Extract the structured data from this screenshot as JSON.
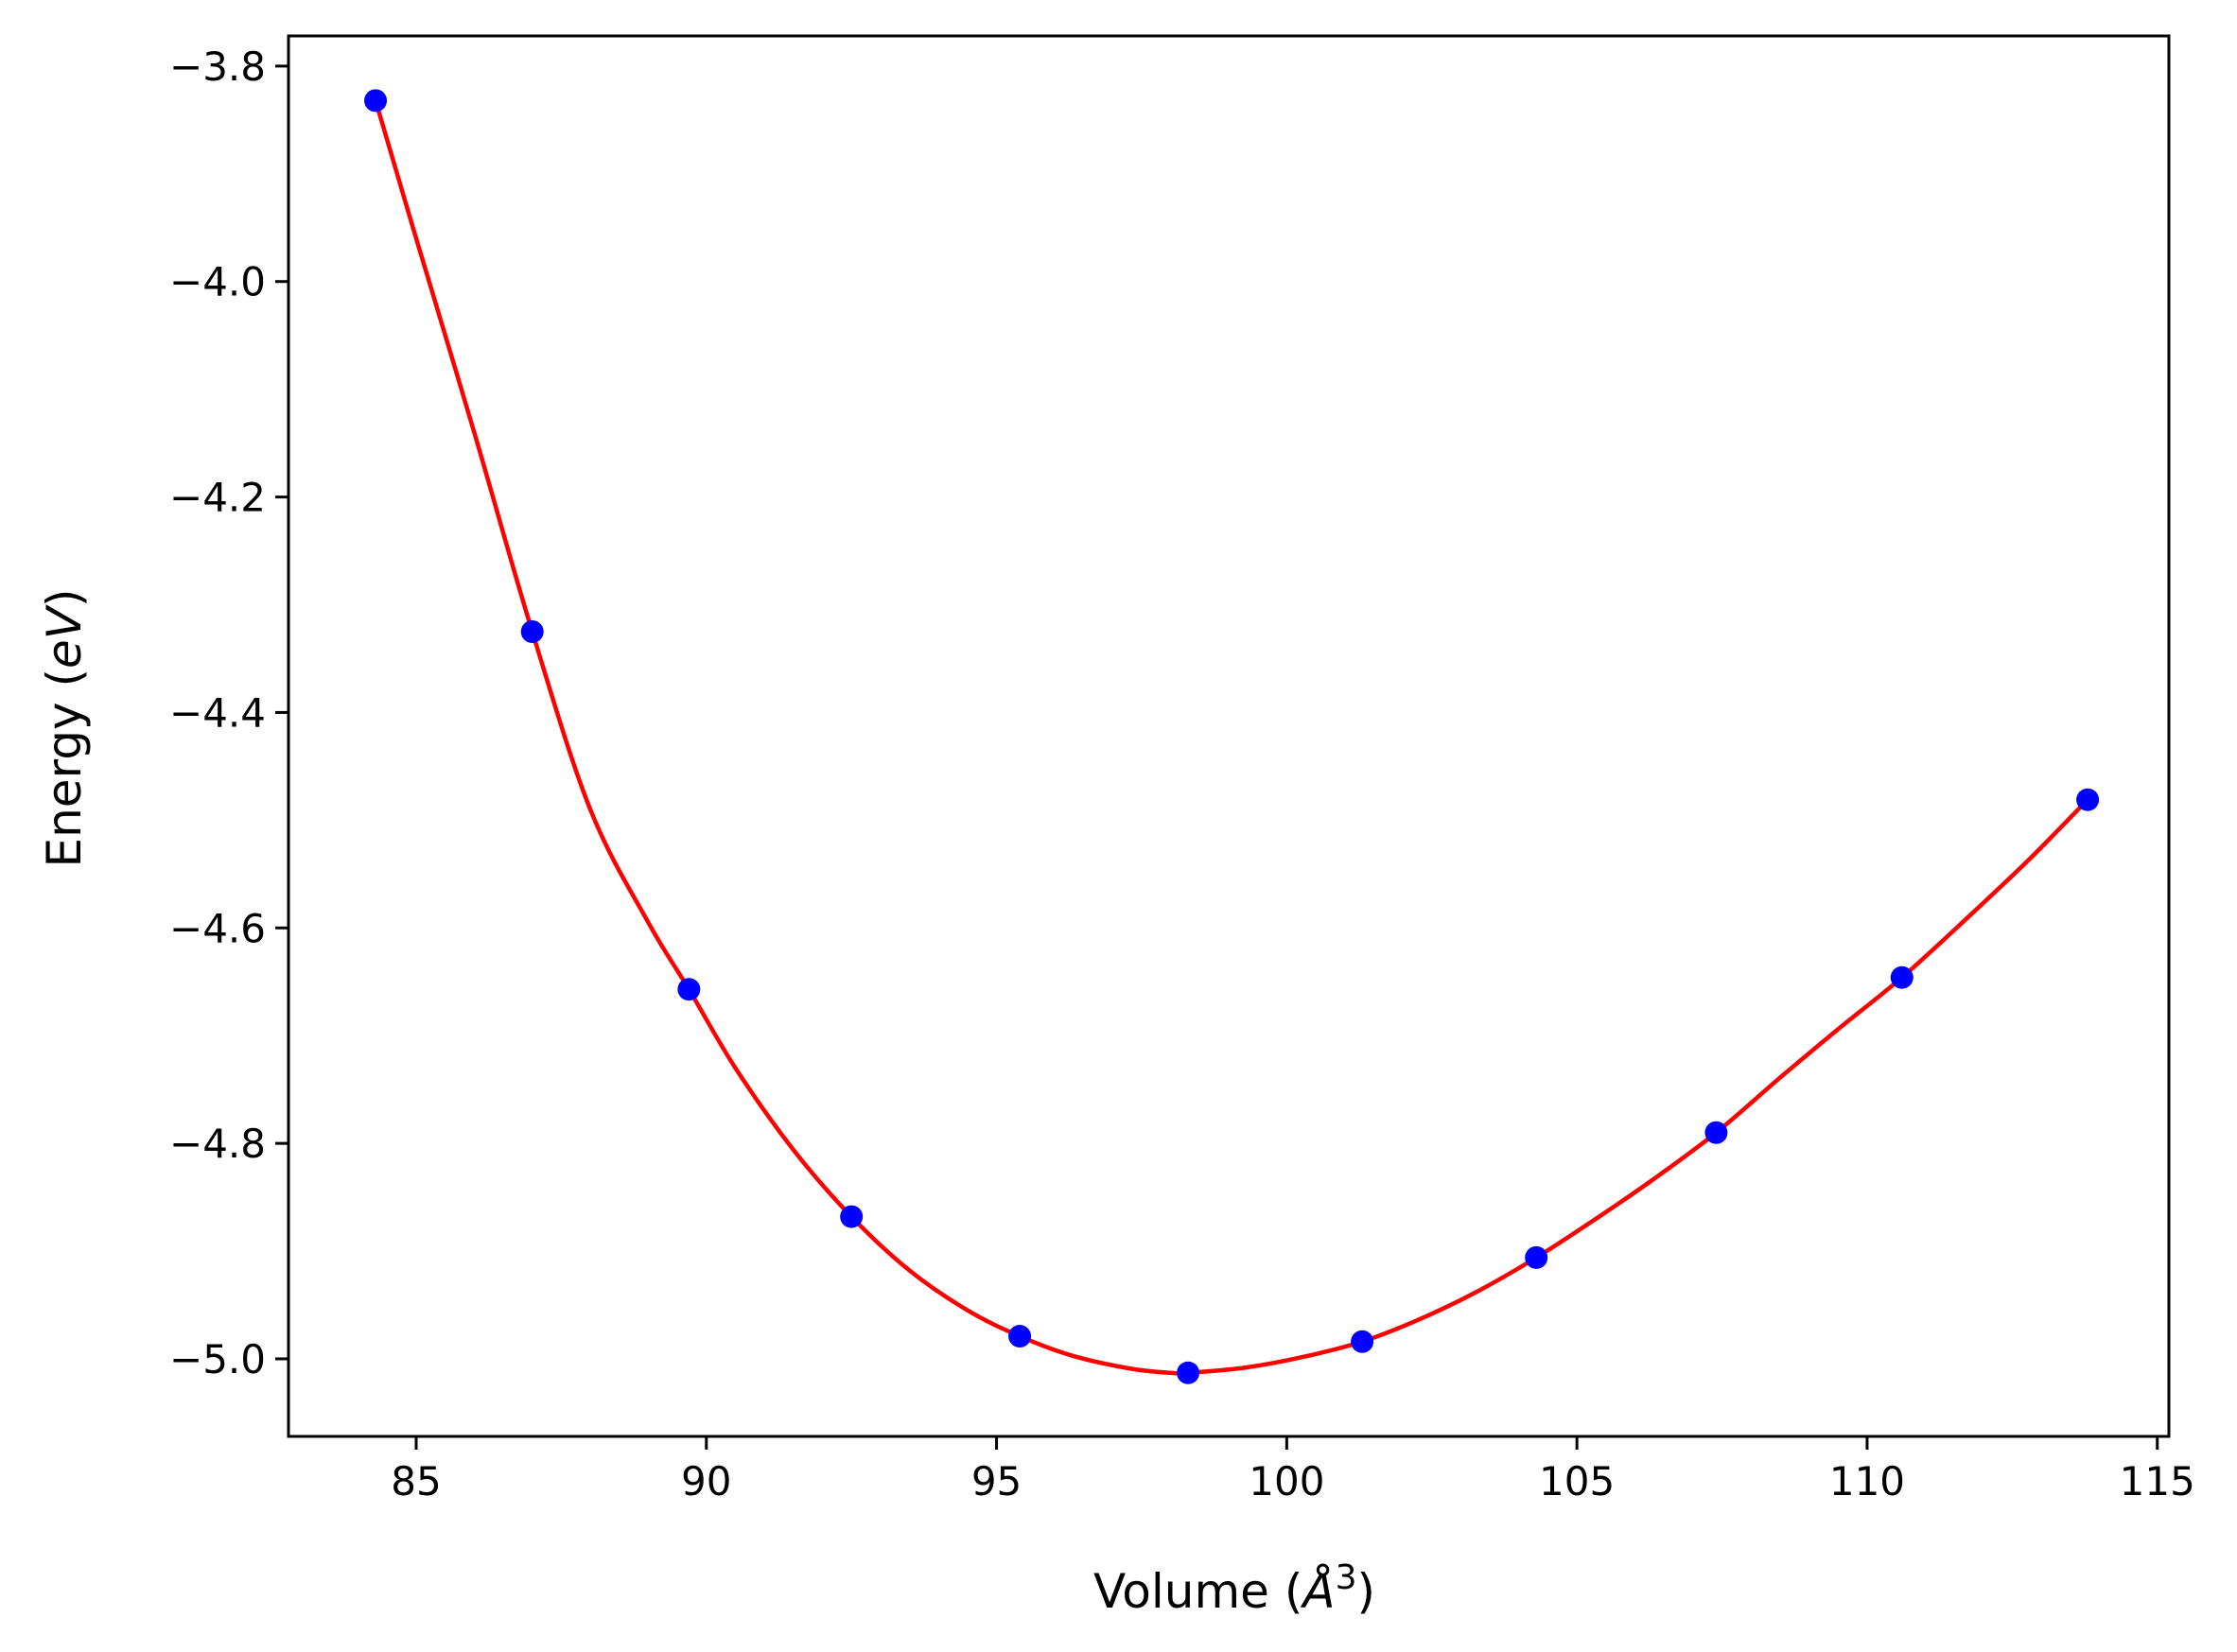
{
  "chart_data": {
    "type": "line",
    "xlabel_prefix": "Volume (",
    "xlabel_unit": "Å",
    "xlabel_exp": "3",
    "xlabel_suffix": ")",
    "ylabel_prefix": "Energy (",
    "ylabel_unit": "eV",
    "ylabel_suffix": ")",
    "xlim": [
      82.8,
      115.2
    ],
    "ylim": [
      -5.072,
      -3.772
    ],
    "xticks": [
      85,
      90,
      95,
      100,
      105,
      110,
      115
    ],
    "xtick_labels": [
      "85",
      "90",
      "95",
      "100",
      "105",
      "110",
      "115"
    ],
    "yticks": [
      -3.8,
      -4.0,
      -4.2,
      -4.4,
      -4.6,
      -4.8,
      -5.0
    ],
    "ytick_labels": [
      "−3.8",
      "−4.0",
      "−4.2",
      "−4.4",
      "−4.6",
      "−4.8",
      "−5.0"
    ],
    "grid": false,
    "series": [
      {
        "kind": "points",
        "color": "#0000ff",
        "x": [
          84.3,
          87.0,
          89.7,
          92.5,
          95.4,
          98.3,
          101.3,
          104.3,
          107.4,
          110.6,
          113.8
        ],
        "y": [
          -3.832,
          -4.325,
          -4.657,
          -4.868,
          -4.979,
          -5.013,
          -4.984,
          -4.906,
          -4.79,
          -4.646,
          -4.481
        ]
      },
      {
        "kind": "fit-curve",
        "color": "#ff0000",
        "x": [
          84.3,
          85.0,
          86.0,
          87.0,
          88.0,
          89.0,
          89.7,
          90.5,
          91.5,
          92.5,
          93.5,
          94.5,
          95.4,
          96.3,
          97.3,
          98.0,
          98.3,
          99.3,
          100.3,
          101.3,
          102.3,
          103.3,
          104.3,
          105.3,
          106.3,
          107.4,
          108.5,
          109.5,
          110.6,
          111.7,
          112.8,
          113.8
        ],
        "y": [
          -3.832,
          -3.96,
          -4.14,
          -4.325,
          -4.49,
          -4.595,
          -4.657,
          -4.73,
          -4.806,
          -4.868,
          -4.918,
          -4.955,
          -4.979,
          -4.997,
          -5.009,
          -5.013,
          -5.013,
          -5.008,
          -4.998,
          -4.984,
          -4.963,
          -4.937,
          -4.906,
          -4.871,
          -4.834,
          -4.79,
          -4.739,
          -4.694,
          -4.646,
          -4.592,
          -4.536,
          -4.481
        ]
      }
    ]
  }
}
